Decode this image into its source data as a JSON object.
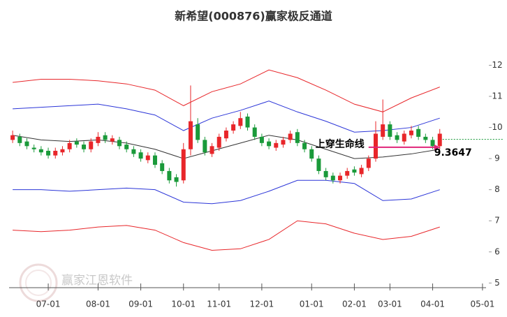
{
  "chart_data": {
    "type": "candlestick",
    "title": "新希望(000876)赢家极反通道",
    "watermark": "赢家江恩软件",
    "up_color": "#e8262a",
    "down_color": "#1a9a3a",
    "xlim": [
      -0.5,
      66.5
    ],
    "xticks": [
      {
        "value": 5,
        "label": "07-01"
      },
      {
        "value": 12,
        "label": "08-01"
      },
      {
        "value": 18,
        "label": "09-01"
      },
      {
        "value": 24,
        "label": "10-01"
      },
      {
        "value": 29,
        "label": "11-01"
      },
      {
        "value": 35,
        "label": "12-01"
      },
      {
        "value": 42,
        "label": "01-01"
      },
      {
        "value": 48,
        "label": "02-01"
      },
      {
        "value": 53,
        "label": "03-01"
      },
      {
        "value": 59,
        "label": "04-01"
      },
      {
        "value": 66,
        "label": "05-01"
      }
    ],
    "ylim": [
      4.85,
      13.2
    ],
    "yticks": [
      5,
      6,
      7,
      8,
      9,
      10,
      11,
      12
    ],
    "candles": {
      "open": [
        9.6,
        9.7,
        9.55,
        9.35,
        9.3,
        9.25,
        9.1,
        9.2,
        9.3,
        9.55,
        9.45,
        9.3,
        9.5,
        9.75,
        9.55,
        9.6,
        9.45,
        9.3,
        9.2,
        8.95,
        9.1,
        8.85,
        8.6,
        8.4,
        8.3,
        9.3,
        10.1,
        9.6,
        9.15,
        9.35,
        9.65,
        9.9,
        10.05,
        10.35,
        10.0,
        9.7,
        9.55,
        9.35,
        9.45,
        9.6,
        9.85,
        9.5,
        9.3,
        9.0,
        8.6,
        8.45,
        8.3,
        8.45,
        8.65,
        8.5,
        8.7,
        9.0,
        9.7,
        10.1,
        9.75,
        9.55,
        9.75,
        9.95,
        9.7,
        9.6,
        9.4
      ],
      "high": [
        9.9,
        9.8,
        9.65,
        9.45,
        9.4,
        9.35,
        9.35,
        9.4,
        9.6,
        9.65,
        9.55,
        9.65,
        9.85,
        9.85,
        9.75,
        9.7,
        9.55,
        9.4,
        9.3,
        9.2,
        9.2,
        8.95,
        8.7,
        8.5,
        9.5,
        11.35,
        10.3,
        9.7,
        9.5,
        9.8,
        10.0,
        10.2,
        10.5,
        10.45,
        10.1,
        9.8,
        9.65,
        9.6,
        9.7,
        9.9,
        9.95,
        9.6,
        9.4,
        9.1,
        8.7,
        8.55,
        8.55,
        8.7,
        8.75,
        8.8,
        9.1,
        10.2,
        10.9,
        10.2,
        9.85,
        9.9,
        10.05,
        10.05,
        9.8,
        9.7,
        9.95
      ],
      "low": [
        9.5,
        9.4,
        9.3,
        9.2,
        9.1,
        9.0,
        9.0,
        9.1,
        9.2,
        9.35,
        9.2,
        9.2,
        9.4,
        9.5,
        9.45,
        9.3,
        9.2,
        9.05,
        8.9,
        8.85,
        8.7,
        8.5,
        8.2,
        8.1,
        8.2,
        9.1,
        9.5,
        9.1,
        9.05,
        9.25,
        9.55,
        9.8,
        9.95,
        9.9,
        9.6,
        9.4,
        9.3,
        9.25,
        9.35,
        9.5,
        9.4,
        9.2,
        8.9,
        8.5,
        8.3,
        8.2,
        8.2,
        8.35,
        8.45,
        8.4,
        8.6,
        8.9,
        9.6,
        9.6,
        9.5,
        9.45,
        9.65,
        9.6,
        9.5,
        9.3,
        9.3
      ],
      "close": [
        9.75,
        9.5,
        9.4,
        9.3,
        9.2,
        9.1,
        9.25,
        9.3,
        9.5,
        9.45,
        9.3,
        9.55,
        9.7,
        9.6,
        9.65,
        9.4,
        9.3,
        9.15,
        9.0,
        9.1,
        8.8,
        8.6,
        8.3,
        8.25,
        9.3,
        10.2,
        9.6,
        9.2,
        9.4,
        9.7,
        9.9,
        10.1,
        10.3,
        10.0,
        9.7,
        9.5,
        9.4,
        9.5,
        9.6,
        9.8,
        9.5,
        9.3,
        9.0,
        8.6,
        8.4,
        8.3,
        8.45,
        8.6,
        8.55,
        8.7,
        9.0,
        9.8,
        10.1,
        9.7,
        9.6,
        9.8,
        9.9,
        9.7,
        9.6,
        9.4,
        9.8
      ]
    },
    "bands": {
      "x": [
        0,
        4,
        8,
        12,
        16,
        20,
        24,
        28,
        32,
        36,
        40,
        44,
        48,
        52,
        56,
        60
      ],
      "series": [
        {
          "color": "#e8262a",
          "values": [
            11.45,
            11.55,
            11.55,
            11.5,
            11.4,
            11.2,
            10.7,
            11.15,
            11.4,
            11.85,
            11.6,
            11.2,
            10.75,
            10.5,
            10.95,
            11.3
          ]
        },
        {
          "color": "#2b35d8",
          "values": [
            10.6,
            10.65,
            10.7,
            10.75,
            10.6,
            10.4,
            9.9,
            10.3,
            10.55,
            10.85,
            10.5,
            10.2,
            9.85,
            9.9,
            10.0,
            10.3
          ]
        },
        {
          "color": "#333333",
          "values": [
            9.75,
            9.6,
            9.55,
            9.6,
            9.5,
            9.3,
            9.0,
            9.25,
            9.5,
            9.75,
            9.6,
            9.3,
            9.0,
            9.05,
            9.15,
            9.3
          ]
        },
        {
          "color": "#2b35d8",
          "values": [
            8.0,
            8.0,
            7.95,
            8.0,
            8.05,
            8.0,
            7.6,
            7.55,
            7.65,
            7.95,
            8.3,
            8.3,
            8.2,
            7.65,
            7.7,
            8.0
          ]
        },
        {
          "color": "#e8262a",
          "values": [
            6.7,
            6.65,
            6.7,
            6.8,
            6.85,
            6.7,
            6.3,
            6.05,
            6.1,
            6.4,
            7.0,
            6.9,
            6.6,
            6.4,
            6.5,
            6.8
          ]
        }
      ]
    },
    "last_price_line": {
      "value": 9.62,
      "color": "#1a9a3a"
    },
    "annotation": {
      "text": "上穿生命线",
      "value": 9.3647,
      "label": "9.3647",
      "from": 50,
      "to": 60,
      "color": "#e0257a"
    }
  }
}
